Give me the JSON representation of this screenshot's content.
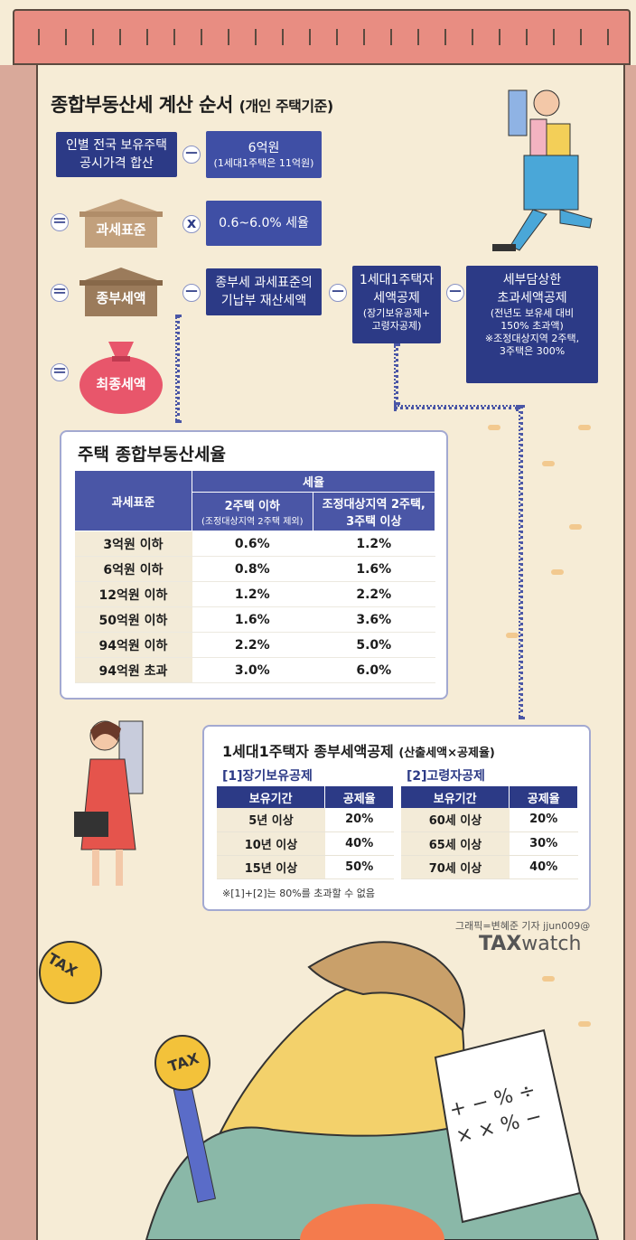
{
  "title": {
    "main": "종합부동산세 계산 순서",
    "sub": "(개인 주택기준)"
  },
  "flow": {
    "box1": {
      "line1": "인별 전국 보유주택",
      "line2": "공시가격 합산"
    },
    "op_minus": "－",
    "op_equal": "＝",
    "op_times": "x",
    "box2": {
      "line1": "6억원",
      "line2": "(1세대1주택은 11억원)"
    },
    "house1": "과세표준",
    "box3": "0.6~6.0% 세율",
    "house2": "종부세액",
    "box4": {
      "line1": "종부세 과세표준의",
      "line2": "기납부 재산세액"
    },
    "box5": {
      "line1": "1세대1주택자",
      "line2": "세액공제",
      "note1": "(장기보유공제+",
      "note2": "고령자공제)"
    },
    "box6": {
      "line1": "세부담상한",
      "line2": "초과세액공제",
      "note1": "(전년도 보유세 대비",
      "note2": "150% 초과액)",
      "note3": "※조정대상지역 2주택,",
      "note4": "3주택은 300%"
    },
    "final": "최종세액"
  },
  "rate_table": {
    "title": "주택 종합부동산세율",
    "head_base": "과세표준",
    "head_rate": "세율",
    "col1": "2주택 이하",
    "col1_note": "(조정대상지역 2주택 제외)",
    "col2_l1": "조정대상지역 2주택,",
    "col2_l2": "3주택 이상",
    "rows": [
      [
        "3억원 이하",
        "0.6%",
        "1.2%"
      ],
      [
        "6억원 이하",
        "0.8%",
        "1.6%"
      ],
      [
        "12억원 이하",
        "1.2%",
        "2.2%"
      ],
      [
        "50억원 이하",
        "1.6%",
        "3.6%"
      ],
      [
        "94억원 이하",
        "2.2%",
        "5.0%"
      ],
      [
        "94억원 초과",
        "3.0%",
        "6.0%"
      ]
    ]
  },
  "deduction": {
    "title": "1세대1주택자 종부세액공제",
    "title_note": "(산출세액×공제율)",
    "t1_title": "[1]장기보유공제",
    "t1_head": [
      "보유기간",
      "공제율"
    ],
    "t1_rows": [
      [
        "5년 이상",
        "20%"
      ],
      [
        "10년 이상",
        "40%"
      ],
      [
        "15년 이상",
        "50%"
      ]
    ],
    "t2_title": "[2]고령자공제",
    "t2_head": [
      "보유기간",
      "공제율"
    ],
    "t2_rows": [
      [
        "60세 이상",
        "20%"
      ],
      [
        "65세 이상",
        "30%"
      ],
      [
        "70세 이상",
        "40%"
      ]
    ],
    "footnote": "※[1]+[2]는 80%를 초과할 수 없음"
  },
  "credit": "그래픽=변혜준 기자 jjun009@",
  "logo": {
    "tax": "TAX",
    "watch": "watch"
  },
  "coin_text": "TAX",
  "sign_text": "TAX",
  "paper_symbols": "+ − % ÷ × ×  %  −",
  "icons": [
    "house-icon",
    "money-bag-icon",
    "man-carrying-buildings-illustration",
    "woman-holding-building-illustration",
    "woman-with-tax-paper-illustration"
  ]
}
